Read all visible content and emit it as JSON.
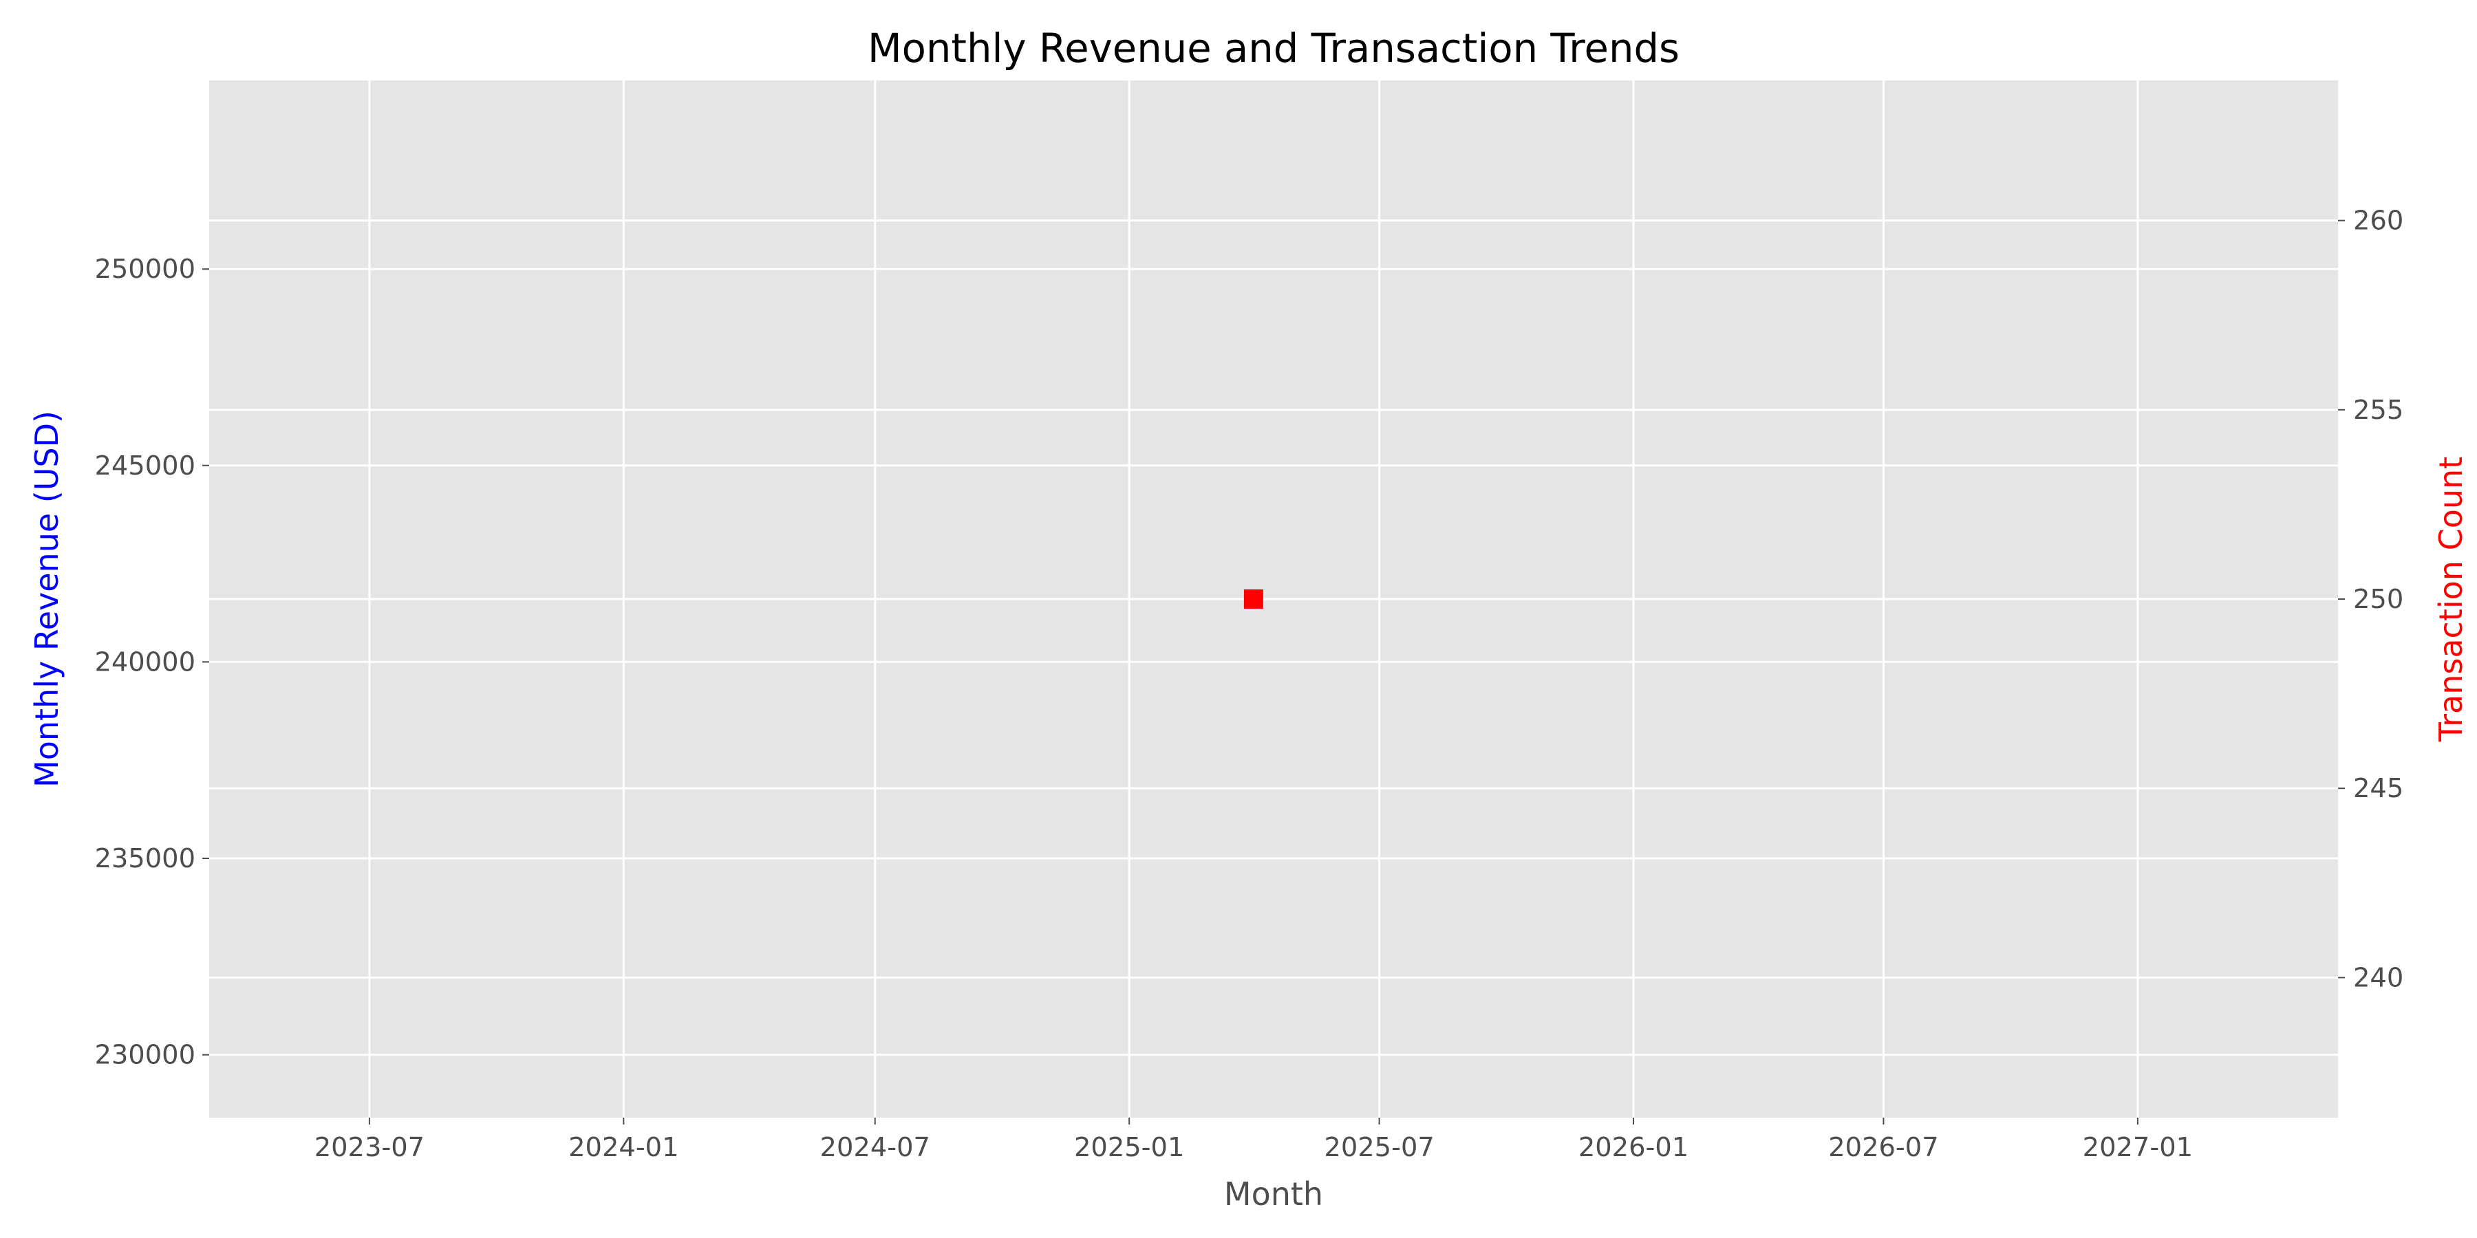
{
  "chart_data": {
    "type": "scatter",
    "title": "Monthly Revenue and Transaction Trends",
    "xlabel": "Month",
    "ylabel_left": "Monthly Revenue (USD)",
    "ylabel_right": "Transaction Count",
    "ylabel_left_color": "#0000ff",
    "ylabel_right_color": "#ff0000",
    "x_ticks": [
      "2023-07",
      "2024-01",
      "2024-07",
      "2025-01",
      "2025-07",
      "2026-01",
      "2026-07",
      "2027-01"
    ],
    "x_range": [
      "2023-03-07",
      "2027-05-26"
    ],
    "y_left_ticks": [
      230000,
      235000,
      240000,
      245000,
      250000
    ],
    "y_left_range": [
      228400,
      254800
    ],
    "y_right_ticks": [
      240,
      245,
      250,
      255,
      260
    ],
    "y_right_range": [
      236.3,
      263.7
    ],
    "grid": true,
    "background": "#e5e5e5",
    "series": [
      {
        "name": "",
        "axis": "right",
        "marker": "square",
        "color": "#ff0000",
        "points": [
          {
            "x": "2025-04-01",
            "y": 250
          }
        ]
      }
    ]
  }
}
